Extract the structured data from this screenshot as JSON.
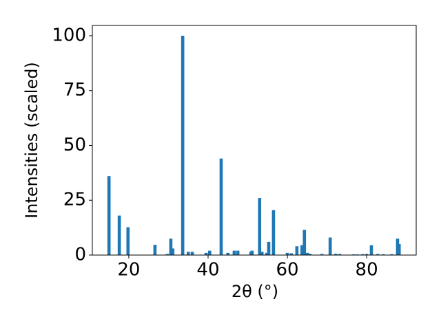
{
  "chart_data": {
    "type": "bar",
    "x_label": "2θ (°)",
    "y_label": "Intensities (scaled)",
    "color": "#1f77b4",
    "x": [
      15.0,
      17.6,
      19.8,
      26.6,
      29.7,
      30.6,
      31.1,
      33.6,
      35.0,
      36.0,
      39.5,
      40.4,
      43.3,
      45.0,
      46.6,
      47.5,
      50.8,
      51.1,
      53.0,
      53.6,
      54.8,
      55.3,
      56.5,
      60.0,
      61.0,
      62.4,
      63.7,
      64.3,
      65.0,
      65.7,
      68.7,
      70.8,
      72.2,
      73.2,
      76.7,
      77.6,
      79.0,
      80.0,
      81.2,
      82.8,
      84.2,
      86.3,
      87.8,
      88.2
    ],
    "values": [
      36,
      18,
      12.7,
      4.7,
      0.5,
      7.5,
      3,
      100,
      1.5,
      1.5,
      1,
      2,
      44,
      1,
      2,
      2,
      1.5,
      2,
      26,
      1.5,
      1,
      6,
      20.5,
      1,
      0.8,
      4,
      4.5,
      11.5,
      1,
      0.6,
      0.5,
      8,
      0.6,
      0.5,
      0.3,
      0.3,
      0.4,
      0.5,
      4.5,
      0.5,
      0.4,
      0.4,
      7.5,
      5
    ],
    "xlim": [
      10.8,
      92.5
    ],
    "ylim": [
      0,
      104.7
    ],
    "xticks": [
      20,
      40,
      60,
      80
    ],
    "yticks": [
      0,
      25,
      50,
      75,
      100
    ]
  }
}
